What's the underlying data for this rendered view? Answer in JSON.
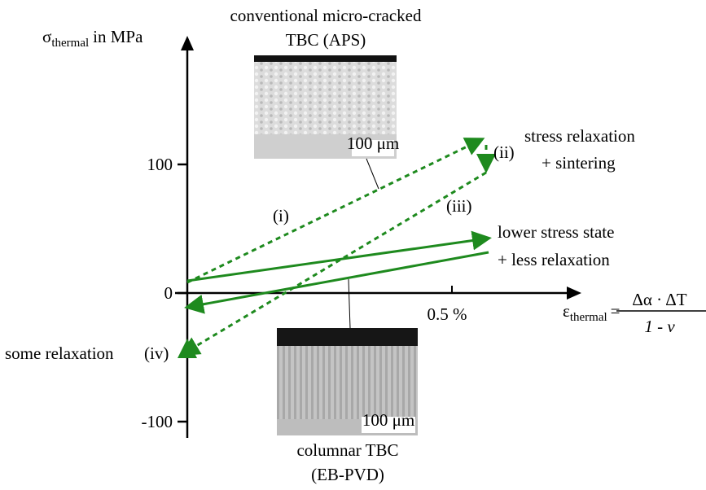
{
  "y_axis": {
    "symbol": "σ",
    "subscript": "thermal",
    "unit": "in MPa",
    "ticks": [
      {
        "value": 100,
        "label": "100"
      },
      {
        "value": 0,
        "label": "0"
      },
      {
        "value": -100,
        "label": "-100"
      }
    ]
  },
  "x_axis": {
    "symbol": "ε",
    "subscript": "thermal",
    "equals": "=",
    "numerator": "Δα · ΔT",
    "denominator": "1 - ν",
    "ticks": [
      {
        "value": 0.5,
        "label": "0.5 %"
      }
    ]
  },
  "aps": {
    "title": [
      "conventional micro-cracked",
      "TBC (APS)"
    ],
    "scale": "100 μm"
  },
  "ebpvd": {
    "title": [
      "columnar TBC",
      "(EB-PVD)"
    ],
    "scale": "100 μm"
  },
  "annotations": {
    "upper": [
      "stress relaxation",
      "+ sintering"
    ],
    "lower": [
      "lower stress state",
      "+ less relaxation"
    ],
    "left": "some relaxation",
    "steps": [
      "(i)",
      "(ii)",
      "(iii)",
      "(iv)"
    ]
  }
}
